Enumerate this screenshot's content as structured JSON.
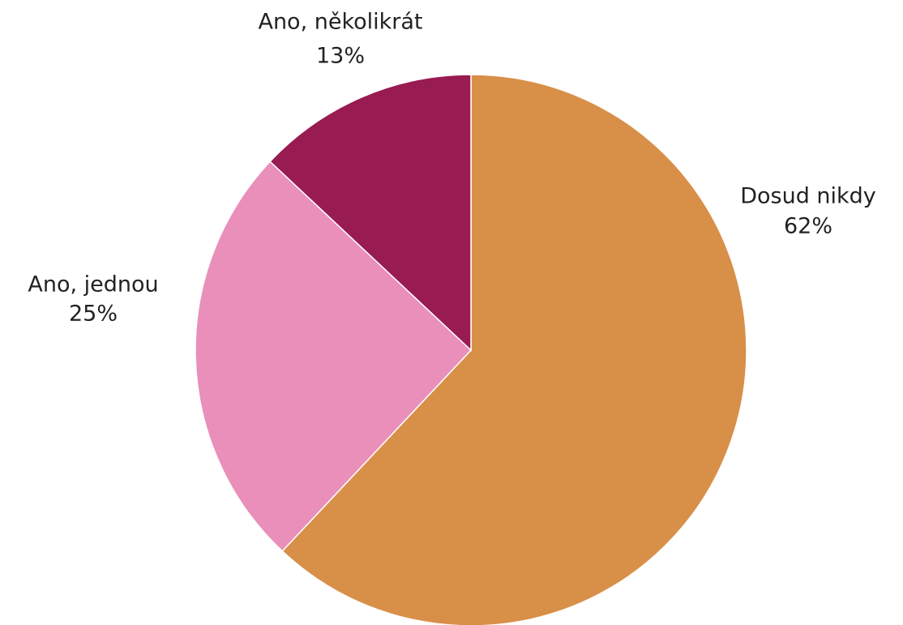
{
  "chart_data": {
    "type": "pie",
    "categories": [
      "Dosud nikdy",
      "Ano, jednou",
      "Ano, několikrát"
    ],
    "values": [
      62,
      25,
      13
    ],
    "value_labels": [
      "62%",
      "25%",
      "13%"
    ],
    "colors": [
      "#d88f48",
      "#e98fba",
      "#981b51"
    ]
  }
}
